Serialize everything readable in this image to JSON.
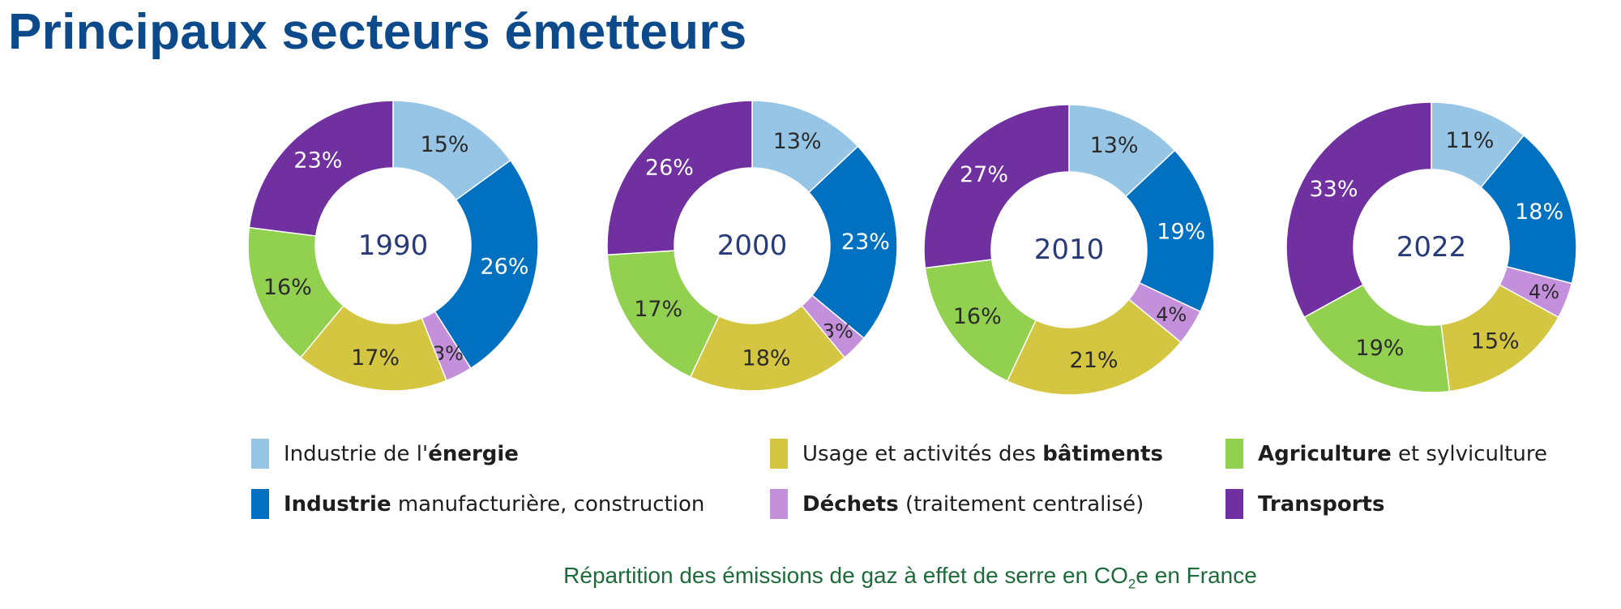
{
  "title": "Principaux secteurs émetteurs",
  "caption": {
    "before": "Répartition des émissions de gaz à effet de serre en CO",
    "sub": "2",
    "after": "e en France"
  },
  "colors": {
    "title": "#0d4a8c",
    "caption": "#1d6b3a",
    "year_label": "#283a7a"
  },
  "chart_data": {
    "type": "pie",
    "variant": "donut",
    "start": "12 o'clock, clockwise",
    "sectors": [
      {
        "key": "energie",
        "color": "#96c5e6",
        "label_color": "#2b2b2b",
        "legend_normal_before": "Industrie de l'",
        "legend_bold": "énergie",
        "legend_normal_after": ""
      },
      {
        "key": "manufacturiere",
        "color": "#0070c0",
        "label_color": "#ffffff",
        "legend_normal_before": "",
        "legend_bold": "Industrie",
        "legend_normal_after": " manufacturière, construction"
      },
      {
        "key": "dechets",
        "color": "#c490dc",
        "label_color": "#2b2b2b",
        "legend_normal_before": "",
        "legend_bold": "Déchets",
        "legend_normal_after": " (traitement centralisé)"
      },
      {
        "key": "batiments",
        "color": "#d4c641",
        "label_color": "#2b2b2b",
        "legend_normal_before": "Usage et activités des ",
        "legend_bold": "bâtiments",
        "legend_normal_after": ""
      },
      {
        "key": "agriculture",
        "color": "#92d050",
        "label_color": "#2b2b2b",
        "legend_normal_before": "",
        "legend_bold": "Agriculture",
        "legend_normal_after": " et sylviculture"
      },
      {
        "key": "transports",
        "color": "#7030a0",
        "label_color": "#ffffff",
        "legend_normal_before": "",
        "legend_bold": "Transports",
        "legend_normal_after": ""
      }
    ],
    "charts": [
      {
        "year": "1990",
        "values": [
          15,
          26,
          3,
          17,
          16,
          23
        ]
      },
      {
        "year": "2000",
        "values": [
          13,
          23,
          3,
          18,
          17,
          26
        ]
      },
      {
        "year": "2010",
        "values": [
          13,
          19,
          4,
          21,
          16,
          27
        ]
      },
      {
        "year": "2022",
        "values": [
          11,
          18,
          4,
          15,
          19,
          33
        ]
      }
    ],
    "unit": "%"
  }
}
